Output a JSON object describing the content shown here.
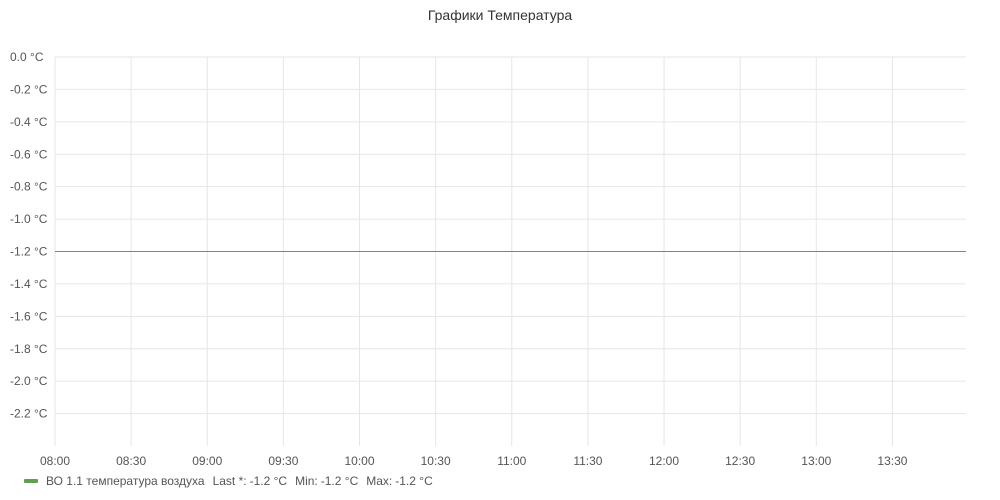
{
  "panel": {
    "title": "Графики Температура"
  },
  "chart_data": {
    "type": "line",
    "title": "Графики Температура",
    "xlabel": "",
    "ylabel": "",
    "y_unit": "°C",
    "ylim": [
      -2.4,
      0.0
    ],
    "yticks": [
      0.0,
      -0.2,
      -0.4,
      -0.6,
      -0.8,
      -1.0,
      -1.2,
      -1.4,
      -1.6,
      -1.8,
      -2.0,
      -2.2
    ],
    "ytick_labels": [
      "0.0 °C",
      "-0.2 °C",
      "-0.4 °C",
      "-0.6 °C",
      "-0.8 °C",
      "-1.0 °C",
      "-1.2 °C",
      "-1.4 °C",
      "-1.6 °C",
      "-1.8 °C",
      "-2.0 °C",
      "-2.2 °C"
    ],
    "xlim": [
      "08:00",
      "13:59"
    ],
    "xticks": [
      "08:00",
      "08:30",
      "09:00",
      "09:30",
      "10:00",
      "10:30",
      "11:00",
      "11:30",
      "12:00",
      "12:30",
      "13:00",
      "13:30"
    ],
    "grid": true,
    "legend_position": "bottom-left",
    "series": [
      {
        "name": "ВО 1.1 температура воздуха",
        "color": "#629e51",
        "x": [
          "08:00",
          "13:59"
        ],
        "values": [
          -1.2,
          -1.2
        ]
      }
    ]
  },
  "legend": {
    "items": [
      {
        "name": "ВО 1.1 температура воздуха",
        "color": "#629e51",
        "stats": [
          {
            "label": "Last *:",
            "value": "-1.2 °C"
          },
          {
            "label": "Min:",
            "value": "-1.2 °C"
          },
          {
            "label": "Max:",
            "value": "-1.2 °C"
          }
        ]
      }
    ]
  }
}
